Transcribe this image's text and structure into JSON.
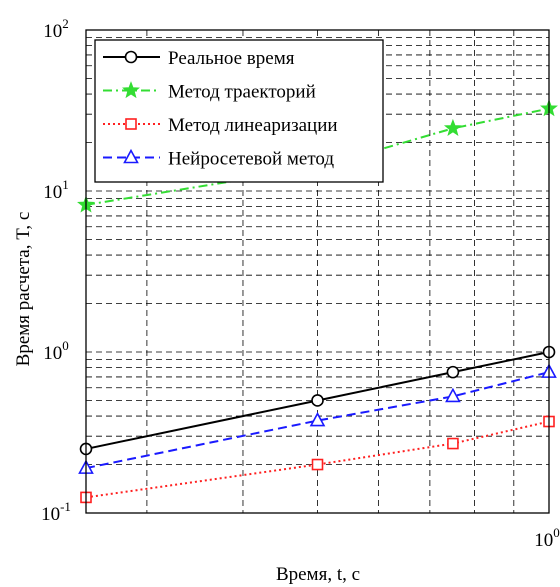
{
  "chart_data": {
    "type": "line",
    "xscale": "log",
    "yscale": "log",
    "xlim": [
      0.25,
      1.0
    ],
    "ylim": [
      0.1,
      100
    ],
    "xlabel": "Время, t, с",
    "ylabel": "Время расчета,  T, с",
    "grid": true,
    "legend_position": "top-left",
    "y_ticks": [
      {
        "value": 100,
        "base": "10",
        "exp": "2"
      },
      {
        "value": 10,
        "base": "10",
        "exp": "1"
      },
      {
        "value": 1,
        "base": "10",
        "exp": "0"
      },
      {
        "value": 0.1,
        "base": "10",
        "exp": "-1"
      }
    ],
    "x_ticks": [
      {
        "value": 1.0,
        "base": "10",
        "exp": "0"
      }
    ],
    "x": [
      0.25,
      0.5,
      0.75,
      1.0
    ],
    "series": [
      {
        "name": "Реальное время",
        "color": "#000000",
        "dash": "",
        "marker": "circle",
        "marker_fill": "#ffffff",
        "values": [
          0.25,
          0.5,
          0.75,
          1.0
        ]
      },
      {
        "name": "Метод траекторий",
        "color": "#33dd33",
        "dash": "9,4,2,4",
        "marker": "star",
        "marker_fill": "#33dd33",
        "values": [
          8.2,
          14.0,
          24.5,
          32.5
        ]
      },
      {
        "name": "Метод линеаризации",
        "color": "#ff2020",
        "dash": "2,3",
        "marker": "square",
        "marker_fill": "#ffffff",
        "values": [
          0.125,
          0.2,
          0.27,
          0.37
        ]
      },
      {
        "name": "Нейросетевой метод",
        "color": "#1a1aff",
        "dash": "9,5",
        "marker": "triangle",
        "marker_fill": "#ffffff",
        "values": [
          0.19,
          0.375,
          0.53,
          0.75
        ]
      }
    ]
  }
}
